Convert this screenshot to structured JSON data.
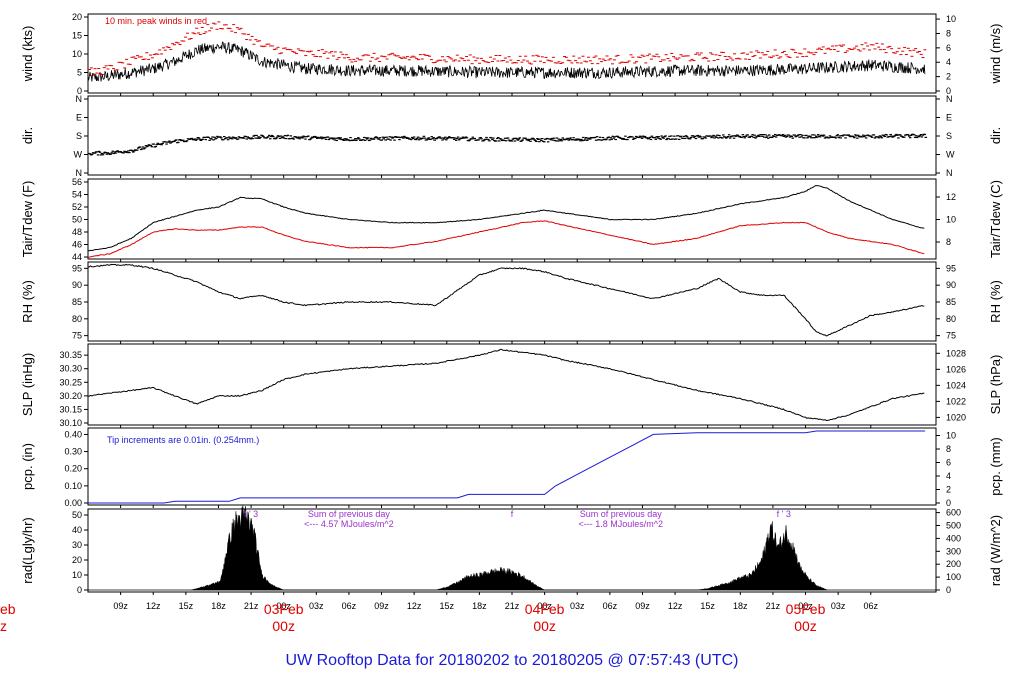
{
  "title": "UW Rooftop Data for 20180202  to  20180205 @ 07:57:43  (UTC)",
  "time_axis": {
    "hour_ticks": [
      "09z",
      "12z",
      "15z",
      "18z",
      "21z",
      "00z",
      "03z",
      "06z",
      "09z",
      "12z",
      "15z",
      "18z",
      "21z",
      "00z",
      "03z",
      "06z",
      "09z",
      "12z",
      "15z",
      "18z",
      "21z",
      "00z",
      "03z",
      "06z"
    ],
    "hour_tick_start": 9,
    "day_labels": [
      {
        "date": "03Feb",
        "hour": "00z",
        "at_hour": 24
      },
      {
        "date": "04Feb",
        "hour": "00z",
        "at_hour": 48
      },
      {
        "date": "05Feb",
        "hour": "00z",
        "at_hour": 72
      }
    ],
    "left_cut": {
      "date": "eb",
      "hour": "z"
    }
  },
  "chart_data": [
    {
      "type": "line",
      "panel": "wind",
      "ylabel": "wind (kts)",
      "ylabel_right": "wind (m/s)",
      "ylim": [
        0,
        20
      ],
      "yticks": [
        0,
        5,
        10,
        15,
        20
      ],
      "right_ticks": [
        0,
        2,
        4,
        6,
        8,
        10
      ],
      "annotation": "10 min. peak winds in red",
      "series": [
        {
          "color": "#000000",
          "style": "noisy-line",
          "x": [
            6,
            8,
            10,
            12,
            14,
            16,
            18,
            20,
            22,
            24,
            26,
            28,
            30,
            36,
            42,
            48,
            54,
            60,
            66,
            72,
            78,
            83
          ],
          "y": [
            3.5,
            4,
            5,
            6,
            8,
            11,
            12,
            11,
            8,
            7,
            6,
            6,
            5.5,
            5.5,
            5,
            5,
            5,
            5.5,
            5.5,
            6,
            7,
            6
          ]
        },
        {
          "color": "#e00000",
          "style": "dashes",
          "note": "peak winds",
          "x": [
            6,
            8,
            10,
            12,
            14,
            16,
            18,
            20,
            22,
            24,
            26,
            28,
            30,
            36,
            42,
            48,
            54,
            60,
            66,
            72,
            78,
            83
          ],
          "y": [
            5,
            6,
            8,
            10,
            13,
            16,
            18,
            16,
            12,
            11,
            10,
            10,
            9,
            9,
            8.5,
            8.5,
            8.5,
            9,
            9.5,
            10.5,
            12,
            10
          ]
        }
      ]
    },
    {
      "type": "scatter",
      "panel": "direction",
      "ylabel": "dir.",
      "ylabel_right": "dir.",
      "ytick_labels": [
        "N",
        "W",
        "S",
        "E",
        "N"
      ],
      "series": [
        {
          "color": "#000000",
          "x": [
            6,
            8,
            10,
            12,
            14,
            16,
            18,
            20,
            22,
            24,
            30,
            36,
            42,
            48,
            54,
            60,
            66,
            72,
            78,
            83
          ],
          "y": [
            95,
            98,
            110,
            135,
            155,
            165,
            170,
            172,
            175,
            175,
            165,
            170,
            165,
            160,
            170,
            172,
            178,
            178,
            178,
            180
          ]
        }
      ]
    },
    {
      "type": "line",
      "panel": "temperature",
      "ylabel": "Tair/Tdew (F)",
      "ylabel_right": "Tair/Tdew (C)",
      "ylim": [
        44,
        56
      ],
      "yticks": [
        44,
        46,
        48,
        50,
        52,
        54,
        56
      ],
      "right_ticks": [
        8,
        10,
        12
      ],
      "series": [
        {
          "color": "#000000",
          "note": "Tair",
          "x": [
            6,
            8,
            10,
            12,
            14,
            16,
            18,
            20,
            22,
            24,
            26,
            30,
            34,
            38,
            42,
            46,
            48,
            50,
            54,
            58,
            62,
            66,
            70,
            72,
            73,
            74,
            76,
            78,
            80,
            83
          ],
          "y": [
            45,
            45.5,
            47,
            49.5,
            50.5,
            51.5,
            52,
            53.5,
            53.3,
            52,
            51,
            50,
            49.5,
            49.5,
            50,
            51,
            51.5,
            51,
            50,
            50,
            51,
            52.5,
            53.5,
            54.5,
            55.5,
            55,
            53,
            51.5,
            50,
            48.5
          ]
        },
        {
          "color": "#e00000",
          "note": "Tdew",
          "x": [
            6,
            8,
            10,
            12,
            14,
            16,
            18,
            20,
            22,
            24,
            26,
            30,
            34,
            38,
            42,
            46,
            48,
            50,
            54,
            58,
            62,
            66,
            70,
            72,
            74,
            76,
            78,
            80,
            83
          ],
          "y": [
            44,
            44.5,
            46,
            48,
            48.5,
            48.3,
            48.3,
            48.8,
            48.8,
            47.5,
            46.5,
            45.5,
            45.5,
            46.5,
            48,
            49.5,
            49.8,
            49,
            47.5,
            46,
            47,
            49,
            49.5,
            49.5,
            48,
            47,
            46.5,
            46,
            44.5
          ]
        }
      ]
    },
    {
      "type": "line",
      "panel": "humidity",
      "ylabel": "RH (%)",
      "ylabel_right": "RH (%)",
      "ylim": [
        74,
        96
      ],
      "yticks": [
        75,
        80,
        85,
        90,
        95
      ],
      "right_ticks": [
        75,
        80,
        85,
        90,
        95
      ],
      "series": [
        {
          "color": "#000000",
          "x": [
            6,
            8,
            10,
            12,
            14,
            16,
            18,
            20,
            22,
            24,
            26,
            30,
            34,
            38,
            42,
            44,
            46,
            48,
            50,
            54,
            58,
            62,
            64,
            66,
            68,
            70,
            72,
            73,
            74,
            76,
            78,
            80,
            83
          ],
          "y": [
            95.5,
            96,
            96,
            95,
            93,
            91,
            88,
            86,
            87,
            85,
            84,
            85,
            85,
            84,
            93,
            95,
            95,
            94,
            92,
            89,
            86,
            89,
            92,
            88,
            87,
            87,
            80,
            76,
            75,
            78,
            81,
            82,
            84
          ]
        }
      ]
    },
    {
      "type": "line",
      "panel": "pressure",
      "ylabel": "SLP (inHg)",
      "ylabel_right": "SLP (hPa)",
      "ylim": [
        30.1,
        30.38
      ],
      "yticks": [
        30.1,
        30.15,
        30.2,
        30.25,
        30.3,
        30.35
      ],
      "right_ticks": [
        1020,
        1022,
        1024,
        1026,
        1028
      ],
      "series": [
        {
          "color": "#000000",
          "x": [
            6,
            8,
            10,
            12,
            14,
            16,
            18,
            20,
            22,
            24,
            26,
            30,
            34,
            38,
            42,
            44,
            46,
            48,
            50,
            54,
            58,
            62,
            66,
            68,
            70,
            72,
            74,
            76,
            78,
            80,
            83
          ],
          "y": [
            30.2,
            30.21,
            30.22,
            30.23,
            30.2,
            30.17,
            30.2,
            30.2,
            30.22,
            30.26,
            30.28,
            30.3,
            30.31,
            30.32,
            30.35,
            30.37,
            30.36,
            30.35,
            30.33,
            30.3,
            30.26,
            30.22,
            30.19,
            30.17,
            30.15,
            30.12,
            30.11,
            30.13,
            30.16,
            30.19,
            30.21
          ]
        }
      ]
    },
    {
      "type": "line",
      "panel": "precipitation",
      "ylabel": "pcp. (in)",
      "ylabel_right": "pcp. (mm)",
      "ylim": [
        0,
        0.42
      ],
      "yticks": [
        0,
        0.1,
        0.2,
        0.3,
        0.4
      ],
      "right_ticks": [
        0,
        2,
        4,
        6,
        8,
        10
      ],
      "annotation": "Tip increments are 0.01in. (0.254mm.)",
      "series": [
        {
          "color": "#1a1ad6",
          "style": "step",
          "x": [
            6,
            13,
            14,
            19,
            20,
            40,
            41,
            48,
            49,
            52,
            55,
            58,
            62,
            65,
            72,
            73,
            83
          ],
          "y": [
            0,
            0,
            0.01,
            0.01,
            0.03,
            0.03,
            0.05,
            0.05,
            0.1,
            0.2,
            0.3,
            0.4,
            0.41,
            0.41,
            0.41,
            0.42,
            0.42
          ]
        }
      ]
    },
    {
      "type": "area",
      "panel": "radiation",
      "ylabel": "rad(Lgly/hr)",
      "ylabel_right": "rad (W/m^2)",
      "ylim": [
        0,
        52
      ],
      "yticks": [
        0,
        10,
        20,
        30,
        40,
        50
      ],
      "right_ticks": [
        0,
        100,
        200,
        300,
        400,
        500,
        600
      ],
      "annotations": [
        {
          "text": "Sum of previous day",
          "at_hour": 30
        },
        {
          "text": "<--- 4.57 MJoules/m^2",
          "at_hour": 30
        },
        {
          "text": "Sum of previous day",
          "at_hour": 55
        },
        {
          "text": "<--- 1.8 MJoules/m^2",
          "at_hour": 55
        },
        {
          "text": "f  '  3",
          "at_hour": 21
        },
        {
          "text": "f",
          "at_hour": 45
        },
        {
          "text": "f  '  3",
          "at_hour": 70
        }
      ],
      "series": [
        {
          "color": "#000000",
          "x": [
            15.5,
            16.5,
            17.5,
            18.2,
            18.8,
            19.5,
            20.5,
            21.2,
            22,
            23,
            24,
            38,
            39,
            40,
            41,
            42,
            43,
            44,
            45,
            46,
            47,
            48,
            62,
            63,
            64,
            65,
            66,
            67,
            68,
            68.8,
            69.5,
            70.2,
            70.8,
            71.5,
            72.2,
            73,
            74
          ],
          "y": [
            0,
            2,
            4,
            6,
            28,
            45,
            50,
            40,
            10,
            3,
            0,
            0,
            2,
            5,
            9,
            10,
            12,
            13,
            12,
            9,
            4,
            0,
            0,
            1,
            3,
            5,
            8,
            10,
            20,
            42,
            28,
            38,
            30,
            15,
            8,
            3,
            0
          ]
        }
      ]
    }
  ]
}
